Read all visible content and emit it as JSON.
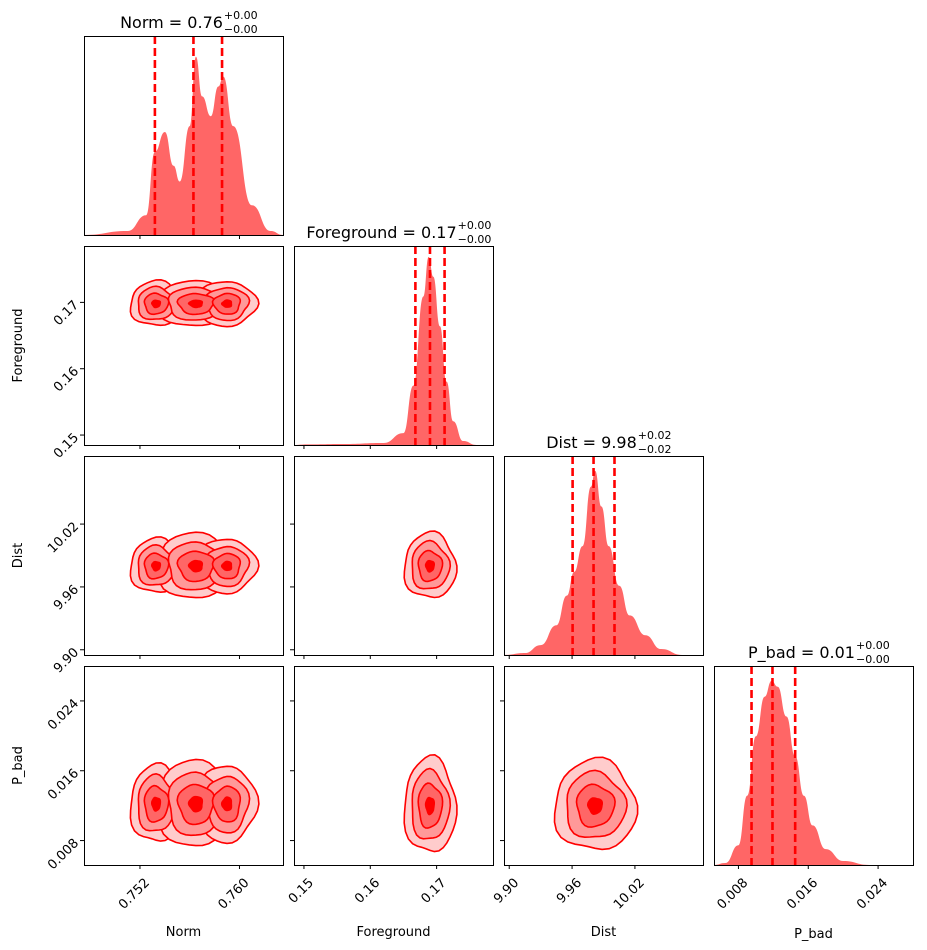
{
  "chart_data": {
    "type": "corner",
    "color": "#ff0000",
    "hist_fill": "#ff6666",
    "parameters": [
      {
        "name": "Norm",
        "xlabel": "Norm",
        "title": {
          "prefix": "Norm = ",
          "value": "0.76",
          "upper": "+0.00",
          "lower": "−0.00"
        },
        "range": [
          0.7475,
          0.7635
        ],
        "ticks": [
          "0.752",
          "0.760"
        ],
        "quantiles": [
          0.7532,
          0.7563,
          0.7586
        ],
        "histogram": [
          [
            0.7475,
            0
          ],
          [
            0.751,
            0.02
          ],
          [
            0.7525,
            0.1
          ],
          [
            0.7532,
            0.42
          ],
          [
            0.754,
            0.52
          ],
          [
            0.7547,
            0.35
          ],
          [
            0.7552,
            0.27
          ],
          [
            0.756,
            0.55
          ],
          [
            0.7565,
            0.9
          ],
          [
            0.757,
            0.7
          ],
          [
            0.7577,
            0.6
          ],
          [
            0.7583,
            0.75
          ],
          [
            0.7587,
            0.8
          ],
          [
            0.7595,
            0.55
          ],
          [
            0.761,
            0.15
          ],
          [
            0.7625,
            0.02
          ],
          [
            0.7635,
            0
          ]
        ]
      },
      {
        "name": "Foreground",
        "xlabel": "Foreground",
        "ylabel": "Foreground",
        "title": {
          "prefix": "Foreground = ",
          "value": "0.17",
          "upper": "+0.00",
          "lower": "−0.00"
        },
        "range": [
          0.1485,
          0.1785
        ],
        "ticks": [
          "0.15",
          "0.16",
          "0.17"
        ],
        "quantiles": [
          0.1668,
          0.169,
          0.1712
        ],
        "histogram": [
          [
            0.1485,
            0
          ],
          [
            0.1505,
            0.003
          ],
          [
            0.156,
            0.005
          ],
          [
            0.162,
            0.01
          ],
          [
            0.165,
            0.06
          ],
          [
            0.1665,
            0.3
          ],
          [
            0.168,
            0.75
          ],
          [
            0.1688,
            0.95
          ],
          [
            0.1695,
            0.85
          ],
          [
            0.1705,
            0.6
          ],
          [
            0.1715,
            0.32
          ],
          [
            0.1725,
            0.12
          ],
          [
            0.174,
            0.02
          ],
          [
            0.176,
            0
          ],
          [
            0.1785,
            0
          ]
        ]
      },
      {
        "name": "Dist",
        "xlabel": "Dist",
        "ylabel": "Dist",
        "title": {
          "prefix": "Dist = ",
          "value": "9.98",
          "upper": "+0.02",
          "lower": "−0.02"
        },
        "range": [
          9.895,
          10.085
        ],
        "ticks": [
          "9.90",
          "9.96",
          "10.02"
        ],
        "quantiles": [
          9.9605,
          9.9805,
          10.0005
        ],
        "histogram": [
          [
            9.895,
            0
          ],
          [
            9.915,
            0.01
          ],
          [
            9.93,
            0.05
          ],
          [
            9.945,
            0.15
          ],
          [
            9.955,
            0.3
          ],
          [
            9.962,
            0.42
          ],
          [
            9.97,
            0.55
          ],
          [
            9.978,
            0.85
          ],
          [
            9.982,
            0.93
          ],
          [
            9.988,
            0.75
          ],
          [
            9.995,
            0.55
          ],
          [
            10.005,
            0.35
          ],
          [
            10.015,
            0.2
          ],
          [
            10.03,
            0.1
          ],
          [
            10.045,
            0.03
          ],
          [
            10.065,
            0
          ],
          [
            10.085,
            0
          ]
        ]
      },
      {
        "name": "P_bad",
        "xlabel": "P_bad",
        "ylabel": "P_bad",
        "title": {
          "prefix": "P_bad = ",
          "value": "0.01",
          "upper": "+0.00",
          "lower": "−0.00"
        },
        "range": [
          0.0052,
          0.028
        ],
        "ticks": [
          "0.008",
          "0.016",
          "0.024"
        ],
        "quantiles": [
          0.0095,
          0.0119,
          0.0145
        ],
        "histogram": [
          [
            0.0052,
            0
          ],
          [
            0.0065,
            0.01
          ],
          [
            0.008,
            0.1
          ],
          [
            0.009,
            0.35
          ],
          [
            0.01,
            0.65
          ],
          [
            0.011,
            0.85
          ],
          [
            0.0118,
            0.93
          ],
          [
            0.0125,
            0.9
          ],
          [
            0.0135,
            0.75
          ],
          [
            0.0145,
            0.55
          ],
          [
            0.0155,
            0.35
          ],
          [
            0.0165,
            0.2
          ],
          [
            0.018,
            0.08
          ],
          [
            0.02,
            0.02
          ],
          [
            0.023,
            0
          ],
          [
            0.028,
            0
          ]
        ]
      }
    ],
    "contours": [
      {
        "x": "Norm",
        "y": "Foreground",
        "blobs": [
          {
            "cx": 0.7533,
            "cy": 0.1698,
            "sx": 0.0008,
            "sy": 0.0013
          },
          {
            "cx": 0.7565,
            "cy": 0.1698,
            "sx": 0.0012,
            "sy": 0.0013
          },
          {
            "cx": 0.759,
            "cy": 0.1698,
            "sx": 0.0009,
            "sy": 0.0013
          }
        ]
      },
      {
        "x": "Norm",
        "y": "Dist",
        "blobs": [
          {
            "cx": 0.7533,
            "cy": 9.98,
            "sx": 0.0008,
            "sy": 0.01
          },
          {
            "cx": 0.7565,
            "cy": 9.98,
            "sx": 0.0012,
            "sy": 0.012
          },
          {
            "cx": 0.759,
            "cy": 9.98,
            "sx": 0.0009,
            "sy": 0.01
          }
        ]
      },
      {
        "x": "Foreground",
        "y": "Dist",
        "blobs": [
          {
            "cx": 0.169,
            "cy": 9.98,
            "sx": 0.0015,
            "sy": 0.012
          }
        ]
      },
      {
        "x": "Norm",
        "y": "P_bad",
        "blobs": [
          {
            "cx": 0.7533,
            "cy": 0.0122,
            "sx": 0.0008,
            "sy": 0.0017
          },
          {
            "cx": 0.7565,
            "cy": 0.0122,
            "sx": 0.0012,
            "sy": 0.0019
          },
          {
            "cx": 0.759,
            "cy": 0.0122,
            "sx": 0.0009,
            "sy": 0.0017
          }
        ]
      },
      {
        "x": "Foreground",
        "y": "P_bad",
        "blobs": [
          {
            "cx": 0.169,
            "cy": 0.012,
            "sx": 0.0015,
            "sy": 0.0021
          }
        ]
      },
      {
        "x": "Dist",
        "y": "P_bad",
        "blobs": [
          {
            "cx": 9.982,
            "cy": 0.012,
            "sx": 0.015,
            "sy": 0.002
          }
        ]
      }
    ]
  }
}
